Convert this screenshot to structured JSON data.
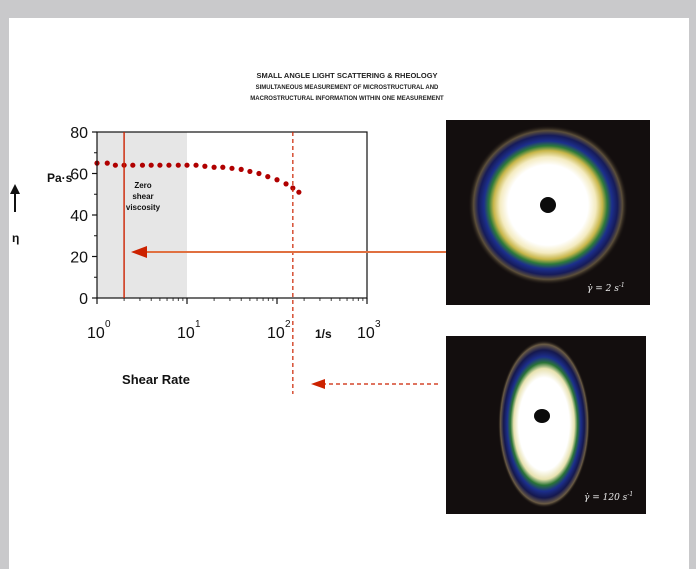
{
  "colors": {
    "page_border": "#c9c9cb",
    "page": "#ffffff",
    "data": "#b00000",
    "guide_line": "#cc2200",
    "arrow": "#e07040",
    "zero_shear_band": "#e6e6e6"
  },
  "header": {
    "title": "SMALL ANGLE LIGHT SCATTERING & RHEOLOGY",
    "subtitle_1": "SIMULTANEOUS MEASUREMENT OF MICROSTRUCTURAL AND",
    "subtitle_2": "MACROSTRUCTURAL INFORMATION WITHIN ONE MEASUREMENT"
  },
  "chart_data": {
    "type": "scatter",
    "xscale": "log",
    "xlim": [
      1,
      1000
    ],
    "ylim": [
      0,
      80
    ],
    "x_tick_bases": [
      "10",
      "10",
      "10",
      "10"
    ],
    "x_tick_exponents": [
      "0",
      "1",
      "2",
      "3"
    ],
    "x_tick_values": [
      1,
      10,
      100,
      1000
    ],
    "y_ticks": [
      "80",
      "60",
      "40",
      "20",
      "0"
    ],
    "y_tick_values": [
      80,
      60,
      40,
      20,
      0
    ],
    "xlabel": "Shear Rate",
    "x_unit": "1/s",
    "ylabel": "η",
    "y_unit": "Pa·s",
    "zero_shear_region": {
      "x": [
        1,
        10
      ],
      "label_lines": [
        "Zero",
        "shear",
        "viscosity"
      ]
    },
    "guide_lines": [
      2,
      150
    ],
    "series": [
      {
        "x": [
          1,
          1.3,
          1.6,
          2,
          2.5,
          3.2,
          4,
          5,
          6.3,
          8,
          10,
          12.6,
          15.8,
          20,
          25,
          31.6,
          40,
          50,
          63,
          79,
          100,
          126,
          150,
          175
        ],
        "y": [
          65,
          65,
          64,
          64,
          64,
          64,
          64,
          64,
          64,
          64,
          64,
          64,
          63.5,
          63,
          63,
          62.5,
          62,
          61,
          60,
          58.5,
          57,
          55,
          53,
          51
        ]
      }
    ]
  },
  "sals_images": [
    {
      "rate_base": "γ̇ = 2 s",
      "rate_exp": "-1"
    },
    {
      "rate_base": "γ̇ = 120 s",
      "rate_exp": "-1"
    }
  ]
}
